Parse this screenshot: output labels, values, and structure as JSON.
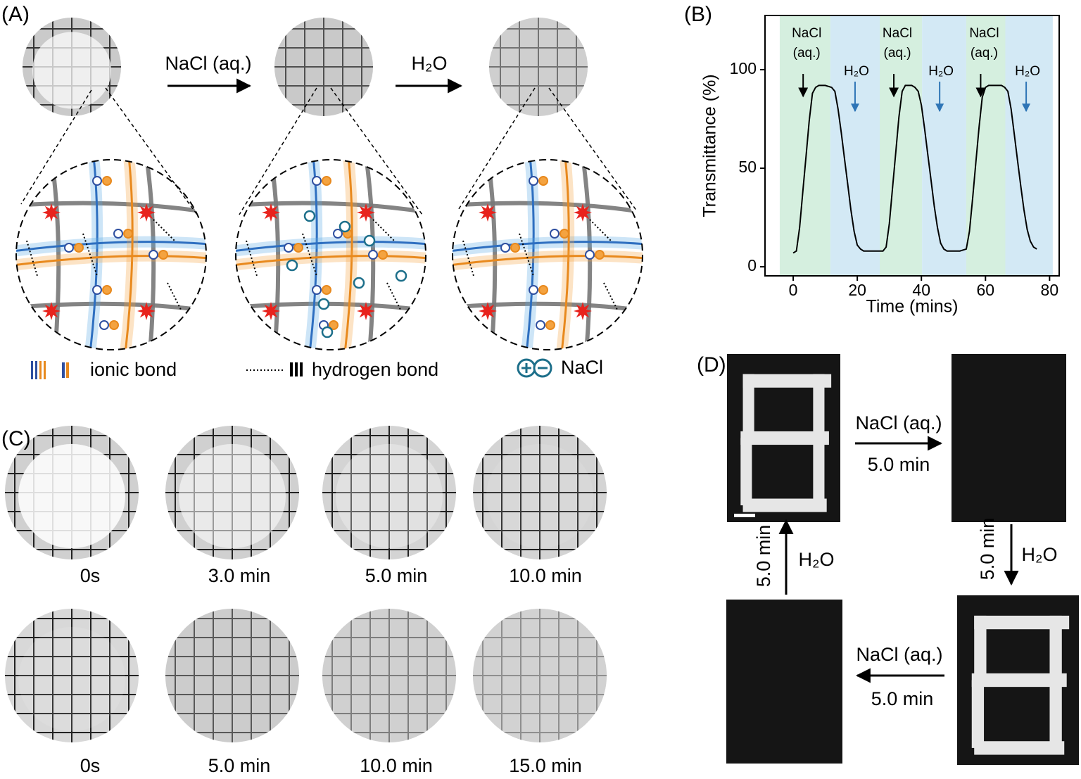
{
  "panel_a": {
    "label": "(A)",
    "arrow_1": "NaCl (aq.)",
    "arrow_2": "H₂O",
    "legend": [
      "ionic bond",
      "hydrogen bond",
      "NaCl"
    ]
  },
  "chart_data": {
    "type": "line",
    "label": "(B)",
    "x_label": "Time (mins)",
    "y_label": "Transmittance (%)",
    "xlim": [
      -8.8,
      83
    ],
    "xticks": [
      0,
      20,
      40,
      60,
      80
    ],
    "ylim": [
      -4.6,
      127.5
    ],
    "yticks": [
      0,
      50,
      100
    ],
    "regions": [
      {
        "start": -4.2,
        "end": 11.6,
        "color": "#d5efdf"
      },
      {
        "start": 11.6,
        "end": 27,
        "color": "#d3e9f5"
      },
      {
        "start": 27,
        "end": 40.2,
        "color": "#d5efdf"
      },
      {
        "start": 40.2,
        "end": 54,
        "color": "#d3e9f5"
      },
      {
        "start": 54,
        "end": 66.2,
        "color": "#d5efdf"
      },
      {
        "start": 66.2,
        "end": 81,
        "color": "#d3e9f5"
      }
    ],
    "annotations": [
      {
        "text": [
          "NaCl",
          "(aq.)"
        ],
        "x": 3.1,
        "color": "#000000"
      },
      {
        "text": [
          "H₂O"
        ],
        "x": 19.3,
        "color": "#2e75b6"
      },
      {
        "text": [
          "NaCl",
          "(aq.)"
        ],
        "x": 31.4,
        "color": "#000000"
      },
      {
        "text": [
          "H₂O"
        ],
        "x": 45.7,
        "color": "#2e75b6"
      },
      {
        "text": [
          "NaCl",
          "(aq.)"
        ],
        "x": 58.5,
        "color": "#000000"
      },
      {
        "text": [
          "H₂O"
        ],
        "x": 72.7,
        "color": "#2e75b6"
      }
    ],
    "series": [
      {
        "color": "#000000",
        "x": [
          0,
          1,
          2,
          3,
          4,
          5,
          6,
          7,
          8,
          10,
          12,
          13,
          14,
          15,
          16,
          17,
          18,
          19,
          20,
          21,
          22,
          24,
          26,
          28,
          29,
          30,
          31,
          32,
          33,
          34,
          35,
          36,
          37,
          38,
          39,
          40,
          41,
          42,
          43,
          44,
          45,
          46,
          47,
          48,
          50,
          52,
          54,
          55,
          56,
          57,
          58,
          59,
          60,
          61,
          63,
          65,
          66,
          67,
          68,
          69,
          70,
          71,
          72,
          73,
          74,
          75,
          76
        ],
        "values": [
          7,
          8,
          20,
          38,
          56,
          74,
          88,
          91,
          92,
          92,
          91,
          89,
          80,
          68,
          55,
          42,
          29,
          18,
          11,
          9,
          8,
          8,
          8,
          8,
          10,
          22,
          40,
          58,
          76,
          89,
          92,
          92,
          92,
          91,
          89,
          82,
          70,
          57,
          44,
          31,
          20,
          12,
          9,
          8,
          8,
          8,
          9,
          18,
          35,
          53,
          71,
          86,
          91,
          92,
          92,
          92,
          91,
          89,
          80,
          67,
          54,
          41,
          29,
          19,
          13,
          10,
          9
        ]
      }
    ]
  },
  "panel_c": {
    "label": "(C)",
    "row_1": [
      "0s",
      "3.0 min",
      "5.0 min",
      "10.0 min"
    ],
    "row_2": [
      "0s",
      "5.0 min",
      "10.0 min",
      "15.0 min"
    ]
  },
  "panel_d": {
    "label": "(D)",
    "top_arrow": [
      "NaCl (aq.)",
      "5.0 min"
    ],
    "right_arrow": [
      "5.0 min",
      "H₂O"
    ],
    "bottom_arrow": [
      "NaCl (aq.)",
      "5.0 min"
    ],
    "left_arrow": [
      "5.0 min",
      "H₂O"
    ]
  }
}
